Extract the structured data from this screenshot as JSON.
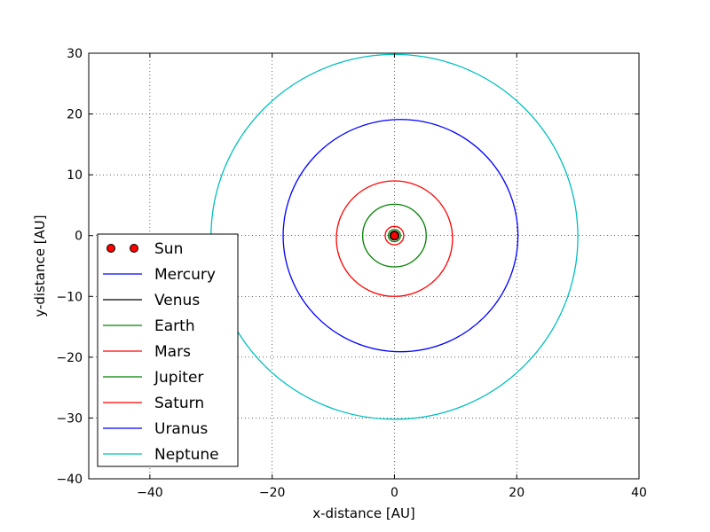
{
  "chart_data": {
    "type": "line",
    "title": "",
    "xlabel": "x-distance [AU]",
    "ylabel": "y-distance [AU]",
    "xlim": [
      -50,
      40
    ],
    "ylim": [
      -40,
      30
    ],
    "xticks": [
      -40,
      -20,
      0,
      20,
      40
    ],
    "yticks": [
      -40,
      -30,
      -20,
      -10,
      0,
      10,
      20,
      30
    ],
    "xtick_labels": [
      "−40",
      "−20",
      "0",
      "20",
      "40"
    ],
    "ytick_labels": [
      "−40",
      "−30",
      "−20",
      "−10",
      "0",
      "10",
      "20",
      "30"
    ],
    "grid": true,
    "legend_position": "lower-left",
    "sun": {
      "name": "Sun",
      "x": 0,
      "y": 0,
      "color": "#ff0000"
    },
    "series": [
      {
        "name": "Mercury",
        "color": "#0000ff",
        "center": [
          0,
          0
        ],
        "radius_x": 0.39,
        "radius_y": 0.38
      },
      {
        "name": "Venus",
        "color": "#000000",
        "center": [
          0,
          0
        ],
        "radius_x": 0.72,
        "radius_y": 0.72
      },
      {
        "name": "Earth",
        "color": "#008000",
        "center": [
          0,
          0
        ],
        "radius_x": 1.0,
        "radius_y": 1.0
      },
      {
        "name": "Mars",
        "color": "#ff0000",
        "center": [
          0,
          0
        ],
        "radius_x": 1.52,
        "radius_y": 1.52
      },
      {
        "name": "Jupiter",
        "color": "#008000",
        "center": [
          0,
          0
        ],
        "radius_x": 5.2,
        "radius_y": 5.15
      },
      {
        "name": "Saturn",
        "color": "#ff0000",
        "center": [
          0,
          -0.5
        ],
        "radius_x": 9.5,
        "radius_y": 9.5
      },
      {
        "name": "Uranus",
        "color": "#0000ff",
        "center": [
          1.0,
          0
        ],
        "radius_x": 19.2,
        "radius_y": 19.1
      },
      {
        "name": "Neptune",
        "color": "#00bfbf",
        "center": [
          0,
          -0.2
        ],
        "radius_x": 30.0,
        "radius_y": 30.0
      }
    ]
  }
}
